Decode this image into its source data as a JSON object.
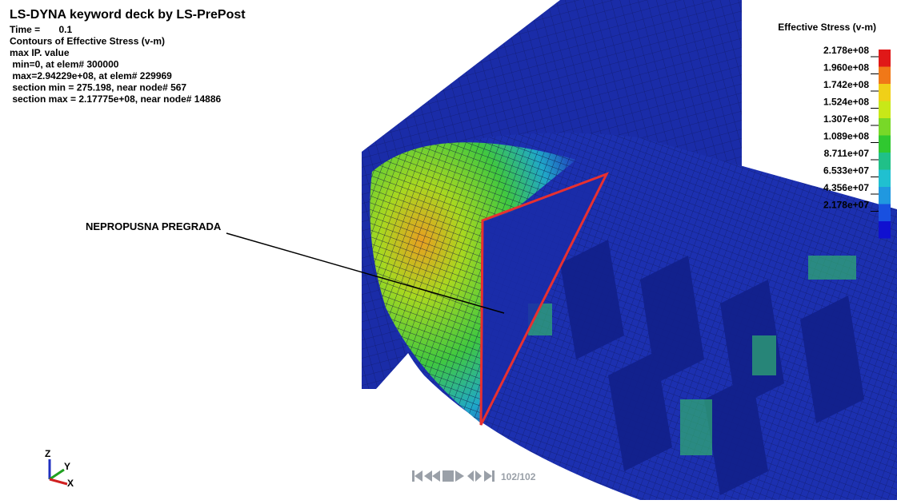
{
  "header": {
    "title": "LS-DYNA keyword deck by LS-PrePost",
    "lines": [
      "Time =       0.1",
      "Contours of Effective Stress (v-m)",
      "max IP. value",
      " min=0, at elem# 300000",
      " max=2.94229e+08, at elem# 229969",
      " section min = 275.198, near node# 567",
      " section max = 2.17775e+08, near node# 14886"
    ]
  },
  "legend": {
    "title": "Effective Stress (v-m)",
    "labels": [
      "2.178e+08",
      "1.960e+08",
      "1.742e+08",
      "1.524e+08",
      "1.307e+08",
      "1.089e+08",
      "8.711e+07",
      "6.533e+07",
      "4.356e+07",
      "2.178e+07"
    ]
  },
  "annotation": "NEPROPUSNA PREGRADA",
  "triad": {
    "z": "Z",
    "y": "Y",
    "x": "X"
  },
  "playback": {
    "frame": "102/102"
  }
}
